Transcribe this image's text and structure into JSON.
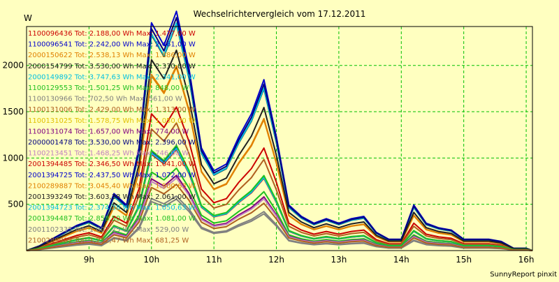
{
  "chart_data": {
    "type": "line",
    "title": "Wechselrichtervergleich vom 17.12.2011",
    "ylabel": "W",
    "xlabel": "",
    "footer": "SunnyReport pinxit",
    "ylim": [
      0,
      2420
    ],
    "xlim": [
      8.0,
      16.1
    ],
    "yticks": [
      500,
      1000,
      1500,
      2000
    ],
    "xticks": [
      {
        "value": 9,
        "label": "9h"
      },
      {
        "value": 10,
        "label": "10h"
      },
      {
        "value": 11,
        "label": "11h"
      },
      {
        "value": 12,
        "label": "12h"
      },
      {
        "value": 13,
        "label": "13h"
      },
      {
        "value": 14,
        "label": "14h"
      },
      {
        "value": 15,
        "label": "15h"
      },
      {
        "value": 16,
        "label": "16h"
      }
    ],
    "grid": true,
    "legend_position": "top-left",
    "x": [
      8.0,
      8.2,
      8.4,
      8.6,
      8.8,
      9.0,
      9.2,
      9.4,
      9.6,
      9.8,
      10.0,
      10.2,
      10.4,
      10.6,
      10.8,
      11.0,
      11.2,
      11.4,
      11.6,
      11.8,
      12.0,
      12.2,
      12.4,
      12.6,
      12.8,
      13.0,
      13.2,
      13.4,
      13.6,
      13.8,
      14.0,
      14.2,
      14.4,
      14.6,
      14.8,
      15.0,
      15.2,
      15.4,
      15.6,
      15.8,
      16.0,
      16.1
    ],
    "profile": [
      0,
      0.02,
      0.05,
      0.08,
      0.11,
      0.13,
      0.1,
      0.25,
      0.2,
      0.45,
      1.0,
      0.9,
      1.05,
      0.8,
      0.45,
      0.35,
      0.38,
      0.5,
      0.6,
      0.75,
      0.5,
      0.2,
      0.15,
      0.12,
      0.14,
      0.12,
      0.14,
      0.15,
      0.08,
      0.05,
      0.05,
      0.2,
      0.12,
      0.1,
      0.09,
      0.05,
      0.05,
      0.05,
      0.04,
      0.01,
      0.01,
      0
    ],
    "series": [
      {
        "name": "1100096436",
        "tot": "Tot: 2.188,00 Wh",
        "max": "Max: 1.477,00 W",
        "max_value": 1477,
        "color": "#cc0000"
      },
      {
        "name": "1100096541",
        "tot": "Tot: 2.242,00 Wh",
        "max": "Max: 2.461,00 W",
        "max_value": 2461,
        "color": "#0000cc"
      },
      {
        "name": "2000150622",
        "tot": "Tot: 2.538,13 Wh",
        "max": "Max: 1.886,00 W",
        "max_value": 1886,
        "color": "#e08000"
      },
      {
        "name": "2000154799",
        "tot": "Tot: 3.530,00 Wh",
        "max": "Max: 2.330,00 W",
        "max_value": 2330,
        "color": "#202020"
      },
      {
        "name": "2000149892",
        "tot": "Tot: 3.747,63 Wh",
        "max": "Max: 2.341,00 W",
        "max_value": 2341,
        "color": "#00c0e0"
      },
      {
        "name": "1100129553",
        "tot": "Tot: 1.501,25 Wh",
        "max": "Max: 848,00 W",
        "max_value": 848,
        "color": "#20c020"
      },
      {
        "name": "1100130966",
        "tot": "Tot: 702,50 Wh",
        "max": "Max: 561,00 W",
        "max_value": 561,
        "color": "#808080"
      },
      {
        "name": "1100131006",
        "tot": "Tot: 2.429,00 Wh",
        "max": "Max: 1.313,00 W",
        "max_value": 1313,
        "color": "#b06020"
      },
      {
        "name": "1100131025",
        "tot": "Tot: 1.578,75 Wh",
        "max": "Max: 1.050,00 W",
        "max_value": 1050,
        "color": "#e0c000"
      },
      {
        "name": "1100131074",
        "tot": "Tot: 1.657,00 Wh",
        "max": "Max: 774,00 W",
        "max_value": 774,
        "color": "#800080"
      },
      {
        "name": "2000001478",
        "tot": "Tot: 3.530,00 Wh",
        "max": "Max: 2.396,00 W",
        "max_value": 2396,
        "color": "#000080"
      },
      {
        "name": "1100213451",
        "tot": "Tot: 1.468,25 Wh",
        "max": "Max: 746,00 W",
        "max_value": 746,
        "color": "#c080c0"
      },
      {
        "name": "2001394485",
        "tot": "Tot: 2.346,50 Wh",
        "max": "Max: 1.041,00 W",
        "max_value": 1041,
        "color": "#cc0000"
      },
      {
        "name": "2001394725",
        "tot": "Tot: 2.437,50 Wh",
        "max": "Max: 1.072,00 W",
        "max_value": 1072,
        "color": "#0000cc"
      },
      {
        "name": "2100289887",
        "tot": "Tot: 3.045,40 Wh",
        "max": "Max: 1.900,63 W",
        "max_value": 1900.63,
        "color": "#e08000"
      },
      {
        "name": "2001393249",
        "tot": "Tot: 3.603,38 Wh",
        "max": "Max: 2.061,00 W",
        "max_value": 2061,
        "color": "#202020"
      },
      {
        "name": "2001394723",
        "tot": "Tot: 2.374,38 Wh",
        "max": "Max: 1.050,63 W",
        "max_value": 1050.63,
        "color": "#00c0e0"
      },
      {
        "name": "2001394487",
        "tot": "Tot: 2.858,50 Wh",
        "max": "Max: 1.081,00 W",
        "max_value": 1081,
        "color": "#20c020"
      },
      {
        "name": "2001102335",
        "tot": "Tot: 1.007,25 Wh",
        "max": "Max: 529,00 W",
        "max_value": 529,
        "color": "#808080"
      },
      {
        "name": "2100289902",
        "tot": "Tot: 1.232,47 Wh",
        "max": "Max: 681,25 W",
        "max_value": 681.25,
        "color": "#b06020"
      }
    ]
  }
}
